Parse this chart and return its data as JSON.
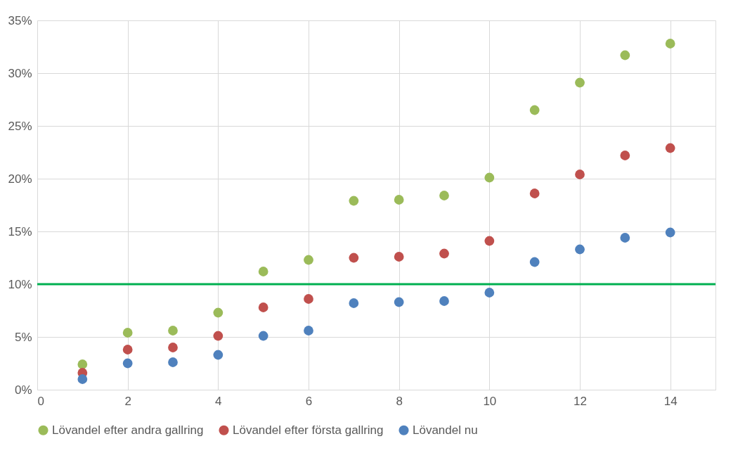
{
  "chart_data": {
    "type": "scatter",
    "x": [
      1,
      2,
      3,
      4,
      5,
      6,
      7,
      8,
      9,
      10,
      11,
      12,
      13,
      14
    ],
    "series": [
      {
        "name": "Lövandel efter andra gallring",
        "color": "#9bbb59",
        "values": [
          2.4,
          5.4,
          5.6,
          7.3,
          11.2,
          12.3,
          17.9,
          18.0,
          18.4,
          20.1,
          26.5,
          29.1,
          31.7,
          32.8
        ]
      },
      {
        "name": "Lövandel efter första gallring",
        "color": "#c0504d",
        "values": [
          1.6,
          3.8,
          4.0,
          5.1,
          7.8,
          8.6,
          12.5,
          12.6,
          12.9,
          14.1,
          18.6,
          20.4,
          22.2,
          22.9
        ]
      },
      {
        "name": "Lövandel nu",
        "color": "#4f81bd",
        "values": [
          1.0,
          2.5,
          2.6,
          3.3,
          5.1,
          5.6,
          8.2,
          8.3,
          8.4,
          9.2,
          12.1,
          13.3,
          14.4,
          14.9
        ]
      }
    ],
    "xlim": [
      0,
      15
    ],
    "xticks": [
      0,
      2,
      4,
      6,
      8,
      10,
      12,
      14
    ],
    "ylim": [
      0,
      35
    ],
    "yticks": [
      {
        "value": 0,
        "label": "0%"
      },
      {
        "value": 5,
        "label": "5%"
      },
      {
        "value": 10,
        "label": "10%"
      },
      {
        "value": 15,
        "label": "15%"
      },
      {
        "value": 20,
        "label": "20%"
      },
      {
        "value": 25,
        "label": "25%"
      },
      {
        "value": 30,
        "label": "30%"
      },
      {
        "value": 35,
        "label": "35%"
      }
    ],
    "ref_lines": [
      {
        "axis": "y",
        "value": 10,
        "color": "#00b050",
        "line_style": "solid"
      }
    ],
    "grid": true,
    "legend": "bottom",
    "marker": "circle"
  }
}
